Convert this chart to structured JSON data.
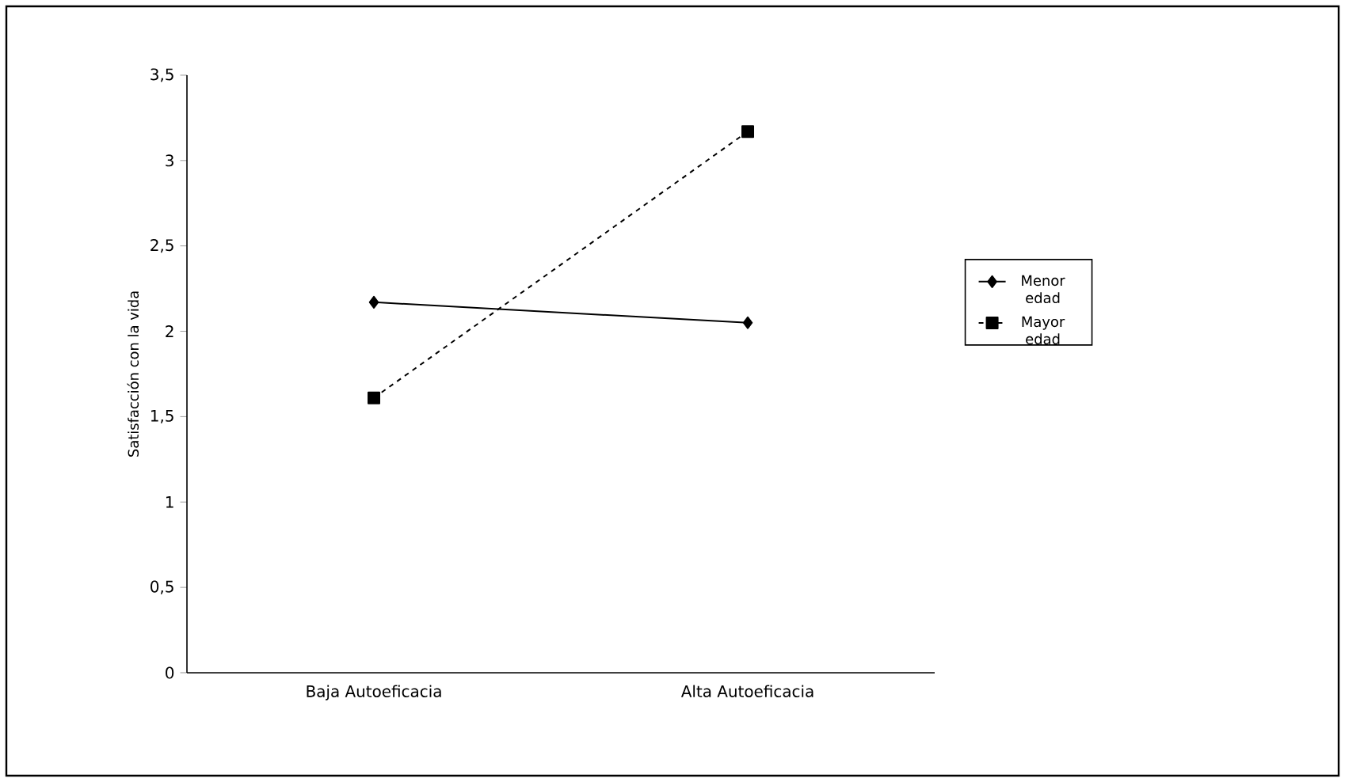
{
  "chart_data": {
    "type": "line",
    "ylabel": "Satisfacción con la vida",
    "categories": [
      "Baja Autoeficacia",
      "Alta Autoeficacia"
    ],
    "series": [
      {
        "name": "Menor edad",
        "color": "#000000",
        "values": [
          2.17,
          2.05
        ],
        "marker": "diamond",
        "line_style": "solid"
      },
      {
        "name": "Mayor edad",
        "color": "#000000",
        "values": [
          1.61,
          3.17
        ],
        "marker": "square",
        "line_style": "dashed"
      }
    ],
    "ylim": [
      0,
      3.5
    ],
    "yticks": [
      0,
      {
        "value": 0.5,
        "label": "0,5"
      },
      1,
      {
        "value": 1.5,
        "label": "1,5"
      },
      2,
      {
        "value": 2.5,
        "label": "2,5"
      },
      3,
      {
        "value": 3.5,
        "label": "3,5"
      }
    ],
    "grid": false,
    "legend": "right"
  }
}
